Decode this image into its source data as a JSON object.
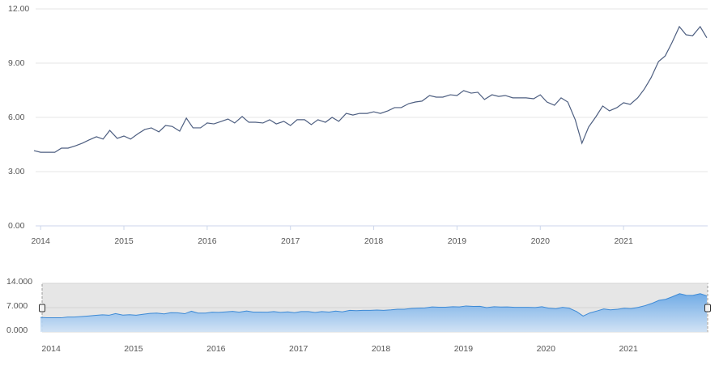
{
  "chart_data": {
    "type": "line",
    "x": [
      2013.92,
      2014,
      2014.08,
      2014.17,
      2014.25,
      2014.33,
      2014.42,
      2014.5,
      2014.58,
      2014.67,
      2014.75,
      2014.83,
      2014.92,
      2015,
      2015.08,
      2015.17,
      2015.25,
      2015.33,
      2015.42,
      2015.5,
      2015.58,
      2015.67,
      2015.75,
      2015.83,
      2015.92,
      2016,
      2016.08,
      2016.17,
      2016.25,
      2016.33,
      2016.42,
      2016.5,
      2016.58,
      2016.67,
      2016.75,
      2016.83,
      2016.92,
      2017,
      2017.08,
      2017.17,
      2017.25,
      2017.33,
      2017.42,
      2017.5,
      2017.58,
      2017.67,
      2017.75,
      2017.83,
      2017.92,
      2018,
      2018.08,
      2018.17,
      2018.25,
      2018.33,
      2018.42,
      2018.5,
      2018.58,
      2018.67,
      2018.75,
      2018.83,
      2018.92,
      2019,
      2019.08,
      2019.17,
      2019.25,
      2019.33,
      2019.42,
      2019.5,
      2019.58,
      2019.67,
      2019.75,
      2019.83,
      2019.92,
      2020,
      2020.08,
      2020.17,
      2020.25,
      2020.33,
      2020.42,
      2020.5,
      2020.58,
      2020.67,
      2020.75,
      2020.83,
      2020.92,
      2021,
      2021.08,
      2021.17,
      2021.25,
      2021.33,
      2021.42,
      2021.5,
      2021.58,
      2021.67,
      2021.75,
      2021.83,
      2021.92,
      2022
    ],
    "series": [
      {
        "color": "#4d5e80",
        "values": [
          4.16,
          4.07,
          4.07,
          4.07,
          4.3,
          4.3,
          4.43,
          4.57,
          4.75,
          4.93,
          4.8,
          5.28,
          4.84,
          4.97,
          4.8,
          5.1,
          5.33,
          5.42,
          5.2,
          5.55,
          5.5,
          5.24,
          5.96,
          5.42,
          5.42,
          5.69,
          5.64,
          5.78,
          5.91,
          5.69,
          6.05,
          5.73,
          5.73,
          5.69,
          5.87,
          5.64,
          5.78,
          5.55,
          5.87,
          5.87,
          5.6,
          5.87,
          5.73,
          6.0,
          5.78,
          6.22,
          6.13,
          6.22,
          6.22,
          6.31,
          6.22,
          6.36,
          6.54,
          6.54,
          6.76,
          6.85,
          6.9,
          7.21,
          7.12,
          7.12,
          7.25,
          7.21,
          7.48,
          7.34,
          7.39,
          6.99,
          7.25,
          7.16,
          7.21,
          7.08,
          7.08,
          7.08,
          7.03,
          7.25,
          6.85,
          6.67,
          7.08,
          6.85,
          5.87,
          4.57,
          5.46,
          6.05,
          6.63,
          6.36,
          6.54,
          6.81,
          6.72,
          7.08,
          7.57,
          8.19,
          9.09,
          9.4,
          10.12,
          11.02,
          10.57,
          10.52,
          11.02,
          10.4
        ]
      }
    ],
    "xlim": [
      2013.94,
      2022.01
    ],
    "xticks": [
      2014,
      2015,
      2016,
      2017,
      2018,
      2019,
      2020,
      2021
    ],
    "ylim": [
      0,
      12
    ],
    "yticks": [
      {
        "value": 0,
        "label": "0.00"
      },
      {
        "value": 3,
        "label": "3.00"
      },
      {
        "value": 6,
        "label": "6.00"
      },
      {
        "value": 9,
        "label": "9.00"
      },
      {
        "value": 12,
        "label": "12.00"
      }
    ],
    "grid": true,
    "navigator": {
      "color": "#3d8ad6",
      "ylim": [
        0,
        14
      ],
      "yticks": [
        {
          "value": 0,
          "label": "0.000"
        },
        {
          "value": 7,
          "label": "7.000"
        },
        {
          "value": 14,
          "label": "14.000"
        }
      ]
    }
  }
}
